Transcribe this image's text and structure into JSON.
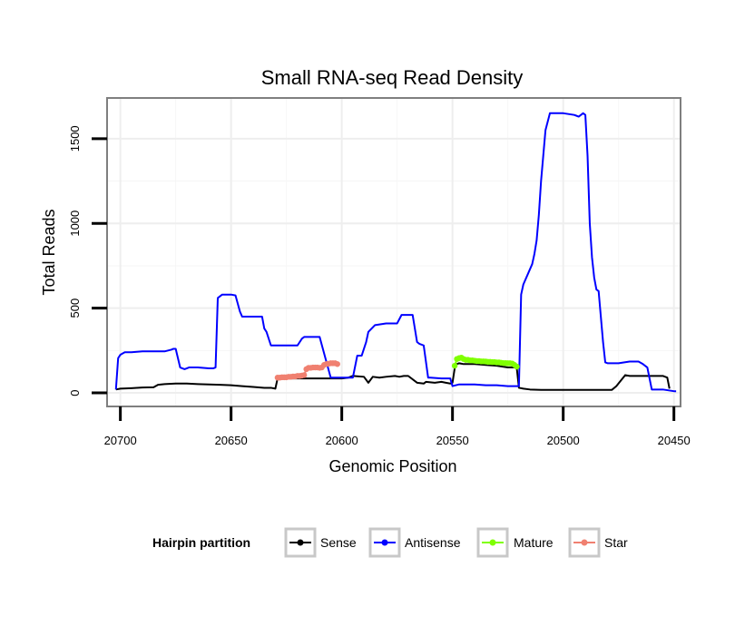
{
  "chart_data": {
    "type": "line",
    "title": "Small RNA-seq Read Density",
    "xlabel": "Genomic Position",
    "ylabel": "Total Reads",
    "xlim": [
      20706,
      20447
    ],
    "ylim": [
      -80,
      1740
    ],
    "x_reversed": true,
    "x_ticks": [
      20700,
      20650,
      20600,
      20550,
      20500,
      20450
    ],
    "x_tick_labels": [
      "20700",
      "20650",
      "20600",
      "20550",
      "20500",
      "20450"
    ],
    "y_ticks": [
      0,
      500,
      1000,
      1500
    ],
    "y_tick_labels": [
      "0",
      "500",
      "1000",
      "1500"
    ],
    "grid": true,
    "legend": {
      "title": "Hairpin partition",
      "position": "bottom",
      "entries": [
        "Sense",
        "Antisense",
        "Mature",
        "Star"
      ]
    },
    "series": [
      {
        "name": "Sense",
        "color": "#000000",
        "marker": "line",
        "x": [
          20702,
          20700,
          20695,
          20690,
          20685,
          20683,
          20680,
          20675,
          20670,
          20665,
          20660,
          20655,
          20650,
          20645,
          20640,
          20635,
          20632,
          20630,
          20629,
          20625,
          20620,
          20615,
          20610,
          20605,
          20600,
          20597,
          20595,
          20590,
          20588,
          20586,
          20583,
          20580,
          20576,
          20574,
          20572,
          20570,
          20566,
          20563,
          20562,
          20558,
          20555,
          20553,
          20551,
          20550,
          20549,
          20548,
          20547,
          20545,
          20540,
          20535,
          20530,
          20525,
          20521,
          20520,
          20518,
          20515,
          20510,
          20505,
          20500,
          20495,
          20490,
          20485,
          20480,
          20478,
          20476,
          20472,
          20470,
          20465,
          20460,
          20455,
          20453,
          20452
        ],
        "y": [
          20,
          25,
          28,
          32,
          33,
          48,
          52,
          55,
          55,
          52,
          50,
          48,
          45,
          40,
          35,
          30,
          30,
          25,
          85,
          85,
          85,
          85,
          85,
          85,
          85,
          90,
          100,
          95,
          60,
          95,
          90,
          95,
          100,
          95,
          100,
          100,
          60,
          55,
          65,
          60,
          65,
          60,
          55,
          60,
          145,
          170,
          175,
          170,
          170,
          165,
          160,
          150,
          150,
          30,
          25,
          20,
          18,
          18,
          18,
          18,
          18,
          18,
          18,
          18,
          40,
          105,
          100,
          100,
          100,
          100,
          90,
          25
        ]
      },
      {
        "name": "Antisense",
        "color": "#0000ff",
        "marker": "line",
        "x": [
          20702,
          20701,
          20700,
          20698,
          20695,
          20690,
          20685,
          20680,
          20677,
          20676,
          20675,
          20673,
          20671,
          20669,
          20665,
          20660,
          20658,
          20657,
          20656,
          20654,
          20650,
          20648,
          20646,
          20645,
          20640,
          20636,
          20635,
          20634,
          20632,
          20630,
          20625,
          20620,
          20618,
          20617,
          20615,
          20610,
          20605,
          20603,
          20600,
          20595,
          20593,
          20591,
          20589,
          20588,
          20585,
          20580,
          20575,
          20573,
          20570,
          20568,
          20566,
          20565,
          20563,
          20561,
          20560,
          20555,
          20551,
          20550,
          20547,
          20540,
          20535,
          20530,
          20525,
          20521,
          20520,
          20519,
          20518,
          20516,
          20514,
          20513,
          20512,
          20511,
          20510,
          20509,
          20508,
          20507,
          20506,
          20504,
          20503,
          20500,
          20495,
          20493,
          20491,
          20490,
          20489,
          20488,
          20487,
          20486,
          20485,
          20484,
          20483,
          20482,
          20481,
          20480,
          20475,
          20470,
          20468,
          20466,
          20464,
          20462,
          20460,
          20455,
          20450,
          20449
        ],
        "y": [
          20,
          205,
          225,
          240,
          240,
          245,
          245,
          245,
          255,
          260,
          260,
          150,
          140,
          150,
          150,
          145,
          145,
          150,
          560,
          580,
          580,
          575,
          480,
          450,
          450,
          450,
          380,
          360,
          280,
          280,
          280,
          280,
          320,
          330,
          330,
          330,
          90,
          90,
          90,
          90,
          220,
          220,
          300,
          360,
          400,
          410,
          410,
          460,
          460,
          460,
          300,
          290,
          280,
          90,
          90,
          85,
          85,
          40,
          50,
          50,
          45,
          45,
          40,
          40,
          40,
          580,
          640,
          700,
          760,
          820,
          900,
          1050,
          1250,
          1400,
          1550,
          1600,
          1650,
          1650,
          1650,
          1650,
          1640,
          1630,
          1650,
          1640,
          1400,
          1000,
          800,
          680,
          610,
          600,
          450,
          300,
          180,
          175,
          175,
          185,
          185,
          185,
          170,
          150,
          20,
          20,
          10,
          10
        ]
      },
      {
        "name": "Mature",
        "color": "#7fff00",
        "marker": "dots",
        "x": [
          20549,
          20548,
          20547,
          20546,
          20545,
          20544,
          20543,
          20542,
          20541,
          20540,
          20539,
          20538,
          20537,
          20536,
          20535,
          20534,
          20533,
          20532,
          20531,
          20530,
          20529,
          20528,
          20527,
          20526,
          20525,
          20524,
          20523,
          20522,
          20521
        ],
        "y": [
          160,
          200,
          205,
          208,
          200,
          195,
          195,
          192,
          192,
          190,
          188,
          188,
          186,
          186,
          185,
          183,
          183,
          182,
          182,
          180,
          180,
          178,
          176,
          176,
          175,
          175,
          173,
          165,
          155
        ]
      },
      {
        "name": "Star",
        "color": "#f08070",
        "marker": "dots",
        "x": [
          20629,
          20628,
          20627,
          20626,
          20625,
          20624,
          20623,
          20622,
          20621,
          20620,
          20619,
          20618,
          20617,
          20616,
          20615,
          20614,
          20613,
          20612,
          20611,
          20610,
          20609,
          20608,
          20607,
          20606,
          20605,
          20604,
          20603,
          20602
        ],
        "y": [
          90,
          90,
          92,
          92,
          92,
          95,
          95,
          97,
          97,
          100,
          100,
          102,
          105,
          140,
          148,
          148,
          150,
          150,
          150,
          148,
          150,
          165,
          170,
          172,
          175,
          175,
          175,
          170
        ]
      }
    ]
  }
}
